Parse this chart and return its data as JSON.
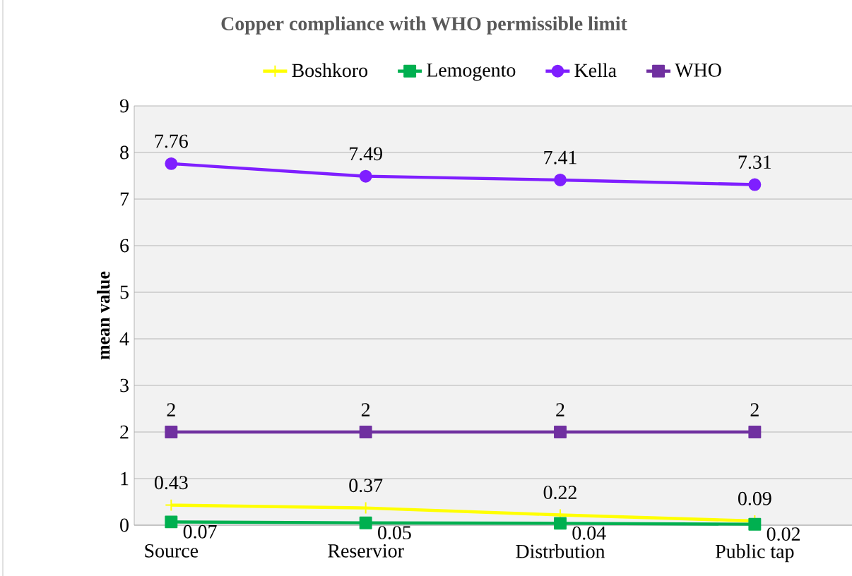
{
  "chart_data": {
    "type": "line",
    "title": "Copper compliance with WHO permissible limit",
    "ylabel": "mean value",
    "categories": [
      "Source",
      "Reservior",
      "Distrbution",
      "Public tap"
    ],
    "series": [
      {
        "name": "Boshkoro",
        "color": "#ffff00",
        "marker": "cross",
        "values": [
          0.43,
          0.37,
          0.22,
          0.09
        ]
      },
      {
        "name": "Lemogento",
        "color": "#00b050",
        "marker": "square",
        "values": [
          0.07,
          0.05,
          0.04,
          0.02
        ]
      },
      {
        "name": "Kella",
        "color": "#7f1fff",
        "marker": "circle",
        "values": [
          7.76,
          7.49,
          7.41,
          7.31
        ]
      },
      {
        "name": "WHO",
        "color": "#7030a0",
        "marker": "square",
        "values": [
          2,
          2,
          2,
          2
        ]
      }
    ],
    "ylim": [
      0,
      9
    ],
    "yticks": [
      0,
      1,
      2,
      3,
      4,
      5,
      6,
      7,
      8,
      9
    ],
    "grid": "y",
    "legend": "top",
    "data_labels": true,
    "line_style": "solid"
  }
}
